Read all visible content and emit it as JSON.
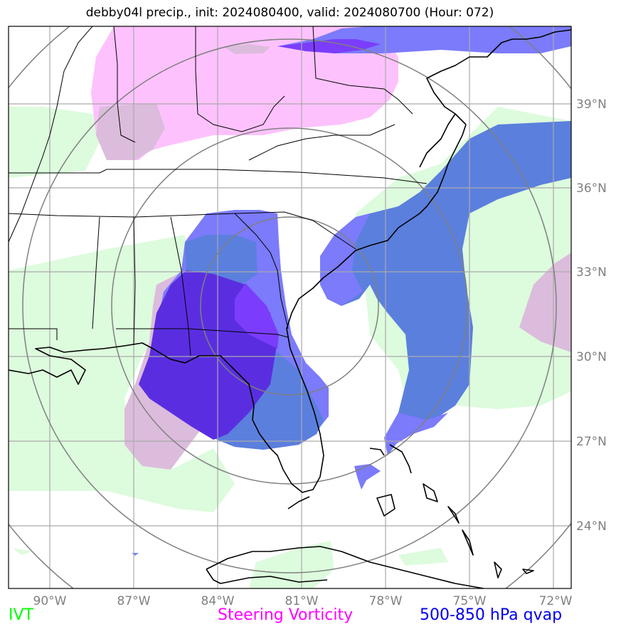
{
  "title": "debby04l precip., init: 2024080400, valid: 2024080700 (Hour: 072)",
  "lon_ticks": [
    "90°W",
    "87°W",
    "84°W",
    "81°W",
    "78°W",
    "75°W",
    "72°W"
  ],
  "lat_ticks": [
    "39°N",
    "36°N",
    "33°N",
    "30°N",
    "27°N",
    "24°N"
  ],
  "legend": {
    "ivt": {
      "label": "IVT",
      "color": "#00ff00"
    },
    "vorticity": {
      "label": "Steering Vorticity",
      "color": "#ff00ff"
    },
    "qvap": {
      "label": "500-850 hPa qvap",
      "color": "#0000ee"
    }
  },
  "colors": {
    "ivt_fill": "#ddfbdd",
    "vorticity_fill": "#fdc2fd",
    "qvap_light": "#7b7bfb",
    "qvap_mid": "#5b7fdd",
    "qvap_dark": "#5a2ee0",
    "overlap_pink_green": "#dcbcdc",
    "grid": "#aaaaaa",
    "range_rings": "#808080"
  }
}
